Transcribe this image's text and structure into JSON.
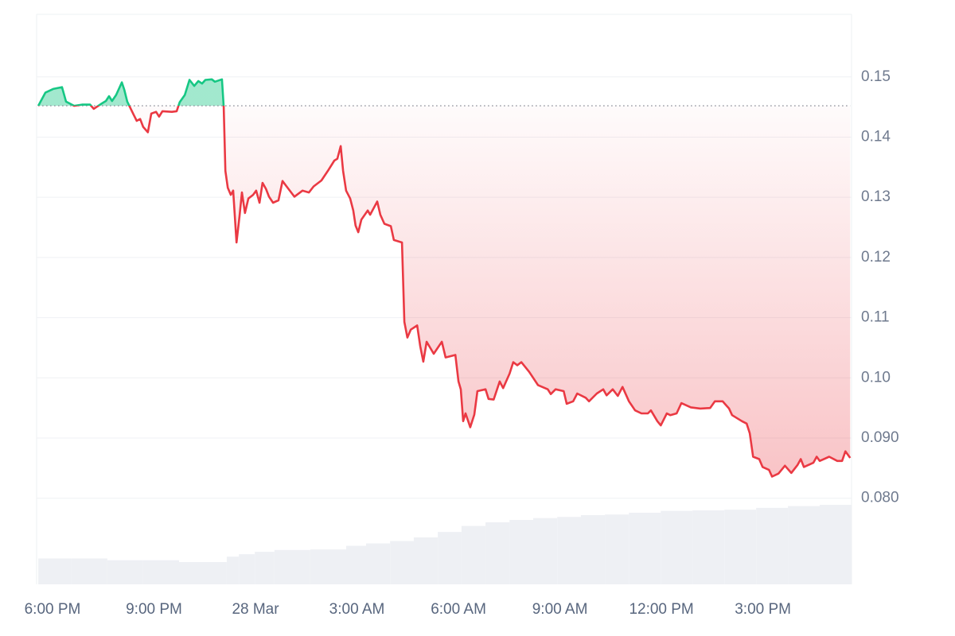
{
  "chart_data": {
    "type": "line",
    "x": [
      -0.42,
      -0.21,
      0.02,
      0.28,
      0.4,
      0.64,
      0.87,
      1.11,
      1.22,
      1.46,
      1.58,
      1.67,
      1.76,
      1.88,
      2.05,
      2.12,
      2.21,
      2.4,
      2.49,
      2.59,
      2.68,
      2.82,
      2.92,
      3.06,
      3.15,
      3.25,
      3.53,
      3.67,
      3.76,
      3.91,
      4.05,
      4.19,
      4.31,
      4.42,
      4.52,
      4.71,
      4.8,
      5.01,
      5.06,
      5.11,
      5.18,
      5.27,
      5.34,
      5.44,
      5.53,
      5.6,
      5.69,
      5.79,
      5.93,
      6.02,
      6.12,
      6.21,
      6.31,
      6.4,
      6.52,
      6.68,
      6.8,
      6.92,
      7.15,
      7.39,
      7.58,
      7.72,
      7.95,
      8.14,
      8.33,
      8.42,
      8.52,
      8.59,
      8.68,
      8.8,
      8.89,
      8.96,
      9.04,
      9.13,
      9.32,
      9.39,
      9.6,
      9.69,
      9.81,
      10.0,
      10.09,
      10.33,
      10.4,
      10.49,
      10.59,
      10.78,
      10.87,
      10.96,
      11.06,
      11.27,
      11.51,
      11.62,
      11.91,
      12.0,
      12.07,
      12.14,
      12.21,
      12.35,
      12.47,
      12.56,
      12.8,
      12.89,
      13.04,
      13.22,
      13.32,
      13.51,
      13.62,
      13.74,
      13.86,
      14.09,
      14.35,
      14.64,
      14.73,
      14.87,
      15.11,
      15.2,
      15.39,
      15.51,
      15.76,
      15.86,
      16.09,
      16.28,
      16.38,
      16.56,
      16.71,
      16.85,
      17.04,
      17.22,
      17.41,
      17.6,
      17.69,
      17.88,
      17.98,
      18.16,
      18.26,
      18.45,
      18.59,
      18.87,
      19.15,
      19.44,
      19.58,
      19.81,
      20.0,
      20.09,
      20.38,
      20.52,
      20.61,
      20.71,
      20.89,
      20.99,
      21.18,
      21.27,
      21.46,
      21.65,
      21.84,
      22.02,
      22.12,
      22.21,
      22.49,
      22.59,
      22.68,
      22.96,
      23.2,
      23.34,
      23.44,
      23.58
    ],
    "values": [
      0.1452,
      0.1474,
      0.148,
      0.1483,
      0.1459,
      0.1452,
      0.1454,
      0.1454,
      0.1447,
      0.1456,
      0.146,
      0.1468,
      0.146,
      0.147,
      0.1491,
      0.1479,
      0.1459,
      0.1437,
      0.1427,
      0.143,
      0.1417,
      0.1408,
      0.1439,
      0.1442,
      0.1434,
      0.1443,
      0.1442,
      0.1443,
      0.1458,
      0.147,
      0.1495,
      0.1485,
      0.1493,
      0.1489,
      0.1495,
      0.1496,
      0.1492,
      0.1496,
      0.145,
      0.1344,
      0.1316,
      0.1304,
      0.1311,
      0.1225,
      0.1269,
      0.1308,
      0.1274,
      0.1298,
      0.1304,
      0.1311,
      0.1291,
      0.1324,
      0.1314,
      0.1301,
      0.1291,
      0.1295,
      0.1327,
      0.1318,
      0.1301,
      0.1311,
      0.1308,
      0.1318,
      0.1328,
      0.1344,
      0.1361,
      0.1364,
      0.1385,
      0.1344,
      0.1311,
      0.1298,
      0.1278,
      0.1253,
      0.1242,
      0.1263,
      0.1278,
      0.1271,
      0.1293,
      0.1271,
      0.1256,
      0.1252,
      0.1229,
      0.1225,
      0.1093,
      0.1067,
      0.108,
      0.1087,
      0.1053,
      0.1027,
      0.106,
      0.104,
      0.106,
      0.1034,
      0.1038,
      0.0994,
      0.0981,
      0.0928,
      0.0941,
      0.0918,
      0.0939,
      0.0978,
      0.0981,
      0.0965,
      0.0964,
      0.0994,
      0.0983,
      0.1007,
      0.1026,
      0.1021,
      0.1026,
      0.101,
      0.0988,
      0.0981,
      0.0973,
      0.0981,
      0.0978,
      0.0957,
      0.0961,
      0.0974,
      0.0967,
      0.0961,
      0.0974,
      0.0981,
      0.0971,
      0.0981,
      0.097,
      0.0985,
      0.0961,
      0.0946,
      0.0941,
      0.0941,
      0.0946,
      0.0928,
      0.0921,
      0.0941,
      0.0938,
      0.0941,
      0.0958,
      0.0951,
      0.0949,
      0.095,
      0.0961,
      0.0961,
      0.0949,
      0.0938,
      0.0928,
      0.0924,
      0.0908,
      0.0869,
      0.0865,
      0.0852,
      0.0847,
      0.0836,
      0.0841,
      0.0854,
      0.0842,
      0.0855,
      0.0865,
      0.0852,
      0.0859,
      0.0869,
      0.0862,
      0.0869,
      0.0862,
      0.0862,
      0.0878,
      0.0867
    ],
    "baseline": 0.1452,
    "up_color": "#16c784",
    "down_color": "#ea3943",
    "volume": {
      "color": "#eef0f4",
      "x": [
        -0.42,
        0.56,
        1.62,
        2.68,
        3.74,
        4.8,
        5.15,
        5.51,
        5.98,
        6.56,
        7.62,
        8.68,
        9.27,
        9.98,
        10.68,
        11.39,
        12.09,
        12.8,
        13.51,
        14.21,
        14.92,
        15.62,
        16.33,
        17.04,
        17.98,
        18.92,
        19.86,
        20.8,
        21.74,
        22.68
      ],
      "values": [
        0.07,
        0.07,
        0.0697,
        0.0697,
        0.0694,
        0.0694,
        0.0703,
        0.0707,
        0.0711,
        0.0714,
        0.0715,
        0.0721,
        0.0725,
        0.0729,
        0.0735,
        0.0744,
        0.0754,
        0.076,
        0.0764,
        0.0767,
        0.0769,
        0.0772,
        0.0773,
        0.0776,
        0.0779,
        0.078,
        0.0781,
        0.0784,
        0.0787,
        0.0789
      ]
    },
    "xlim": [
      -0.47,
      23.62
    ],
    "ylim": [
      0.0657,
      0.1604
    ],
    "xticks": [
      {
        "value": 0,
        "label": "6:00 PM"
      },
      {
        "value": 3,
        "label": "9:00 PM"
      },
      {
        "value": 6,
        "label": "28 Mar"
      },
      {
        "value": 9,
        "label": "3:00 AM"
      },
      {
        "value": 12,
        "label": "6:00 AM"
      },
      {
        "value": 15,
        "label": "9:00 AM"
      },
      {
        "value": 18,
        "label": "12:00 PM"
      },
      {
        "value": 21,
        "label": "3:00 PM"
      }
    ],
    "yticks": [
      {
        "value": 0.08,
        "label": "0.080"
      },
      {
        "value": 0.09,
        "label": "0.090"
      },
      {
        "value": 0.1,
        "label": "0.10"
      },
      0.11,
      0.12,
      0.13,
      0.14,
      0.15
    ],
    "grid": true
  }
}
